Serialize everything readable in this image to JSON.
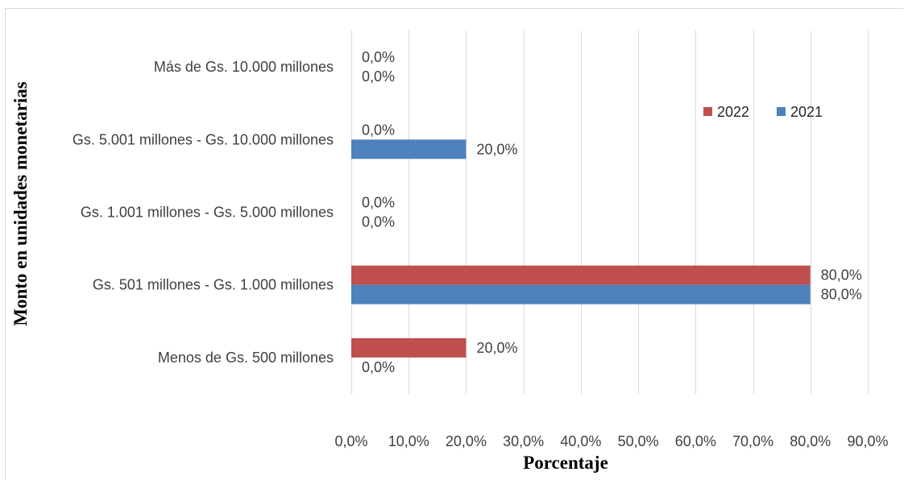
{
  "chart_data": {
    "type": "bar",
    "orientation": "horizontal",
    "categories": [
      "Más de Gs. 10.000 millones",
      "Gs. 5.001 millones - Gs. 10.000 millones",
      "Gs. 1.001 millones - Gs. 5.000 millones",
      "Gs. 501 millones - Gs. 1.000 millones",
      "Menos de Gs. 500 millones"
    ],
    "series": [
      {
        "name": "2022",
        "color": "#c0504d",
        "values": [
          0,
          0,
          0,
          80,
          20
        ],
        "labels": [
          "0,0%",
          "0,0%",
          "0,0%",
          "80,0%",
          "20,0%"
        ]
      },
      {
        "name": "2021",
        "color": "#4f81bd",
        "values": [
          0,
          20,
          0,
          80,
          0
        ],
        "labels": [
          "0,0%",
          "20,0%",
          "0,0%",
          "80,0%",
          "0,0%"
        ]
      }
    ],
    "xlabel": "Porcentaje",
    "ylabel": "Monto en unidades monetarias",
    "xlim": [
      0,
      90
    ],
    "xticks": [
      0,
      10,
      20,
      30,
      40,
      50,
      60,
      70,
      80,
      90
    ],
    "xtick_labels": [
      "0,0%",
      "10,0%",
      "20,0%",
      "30,0%",
      "40,0%",
      "50,0%",
      "60,0%",
      "70,0%",
      "80,0%",
      "90,0%"
    ],
    "grid": "vertical",
    "legend_position": "top-right"
  }
}
